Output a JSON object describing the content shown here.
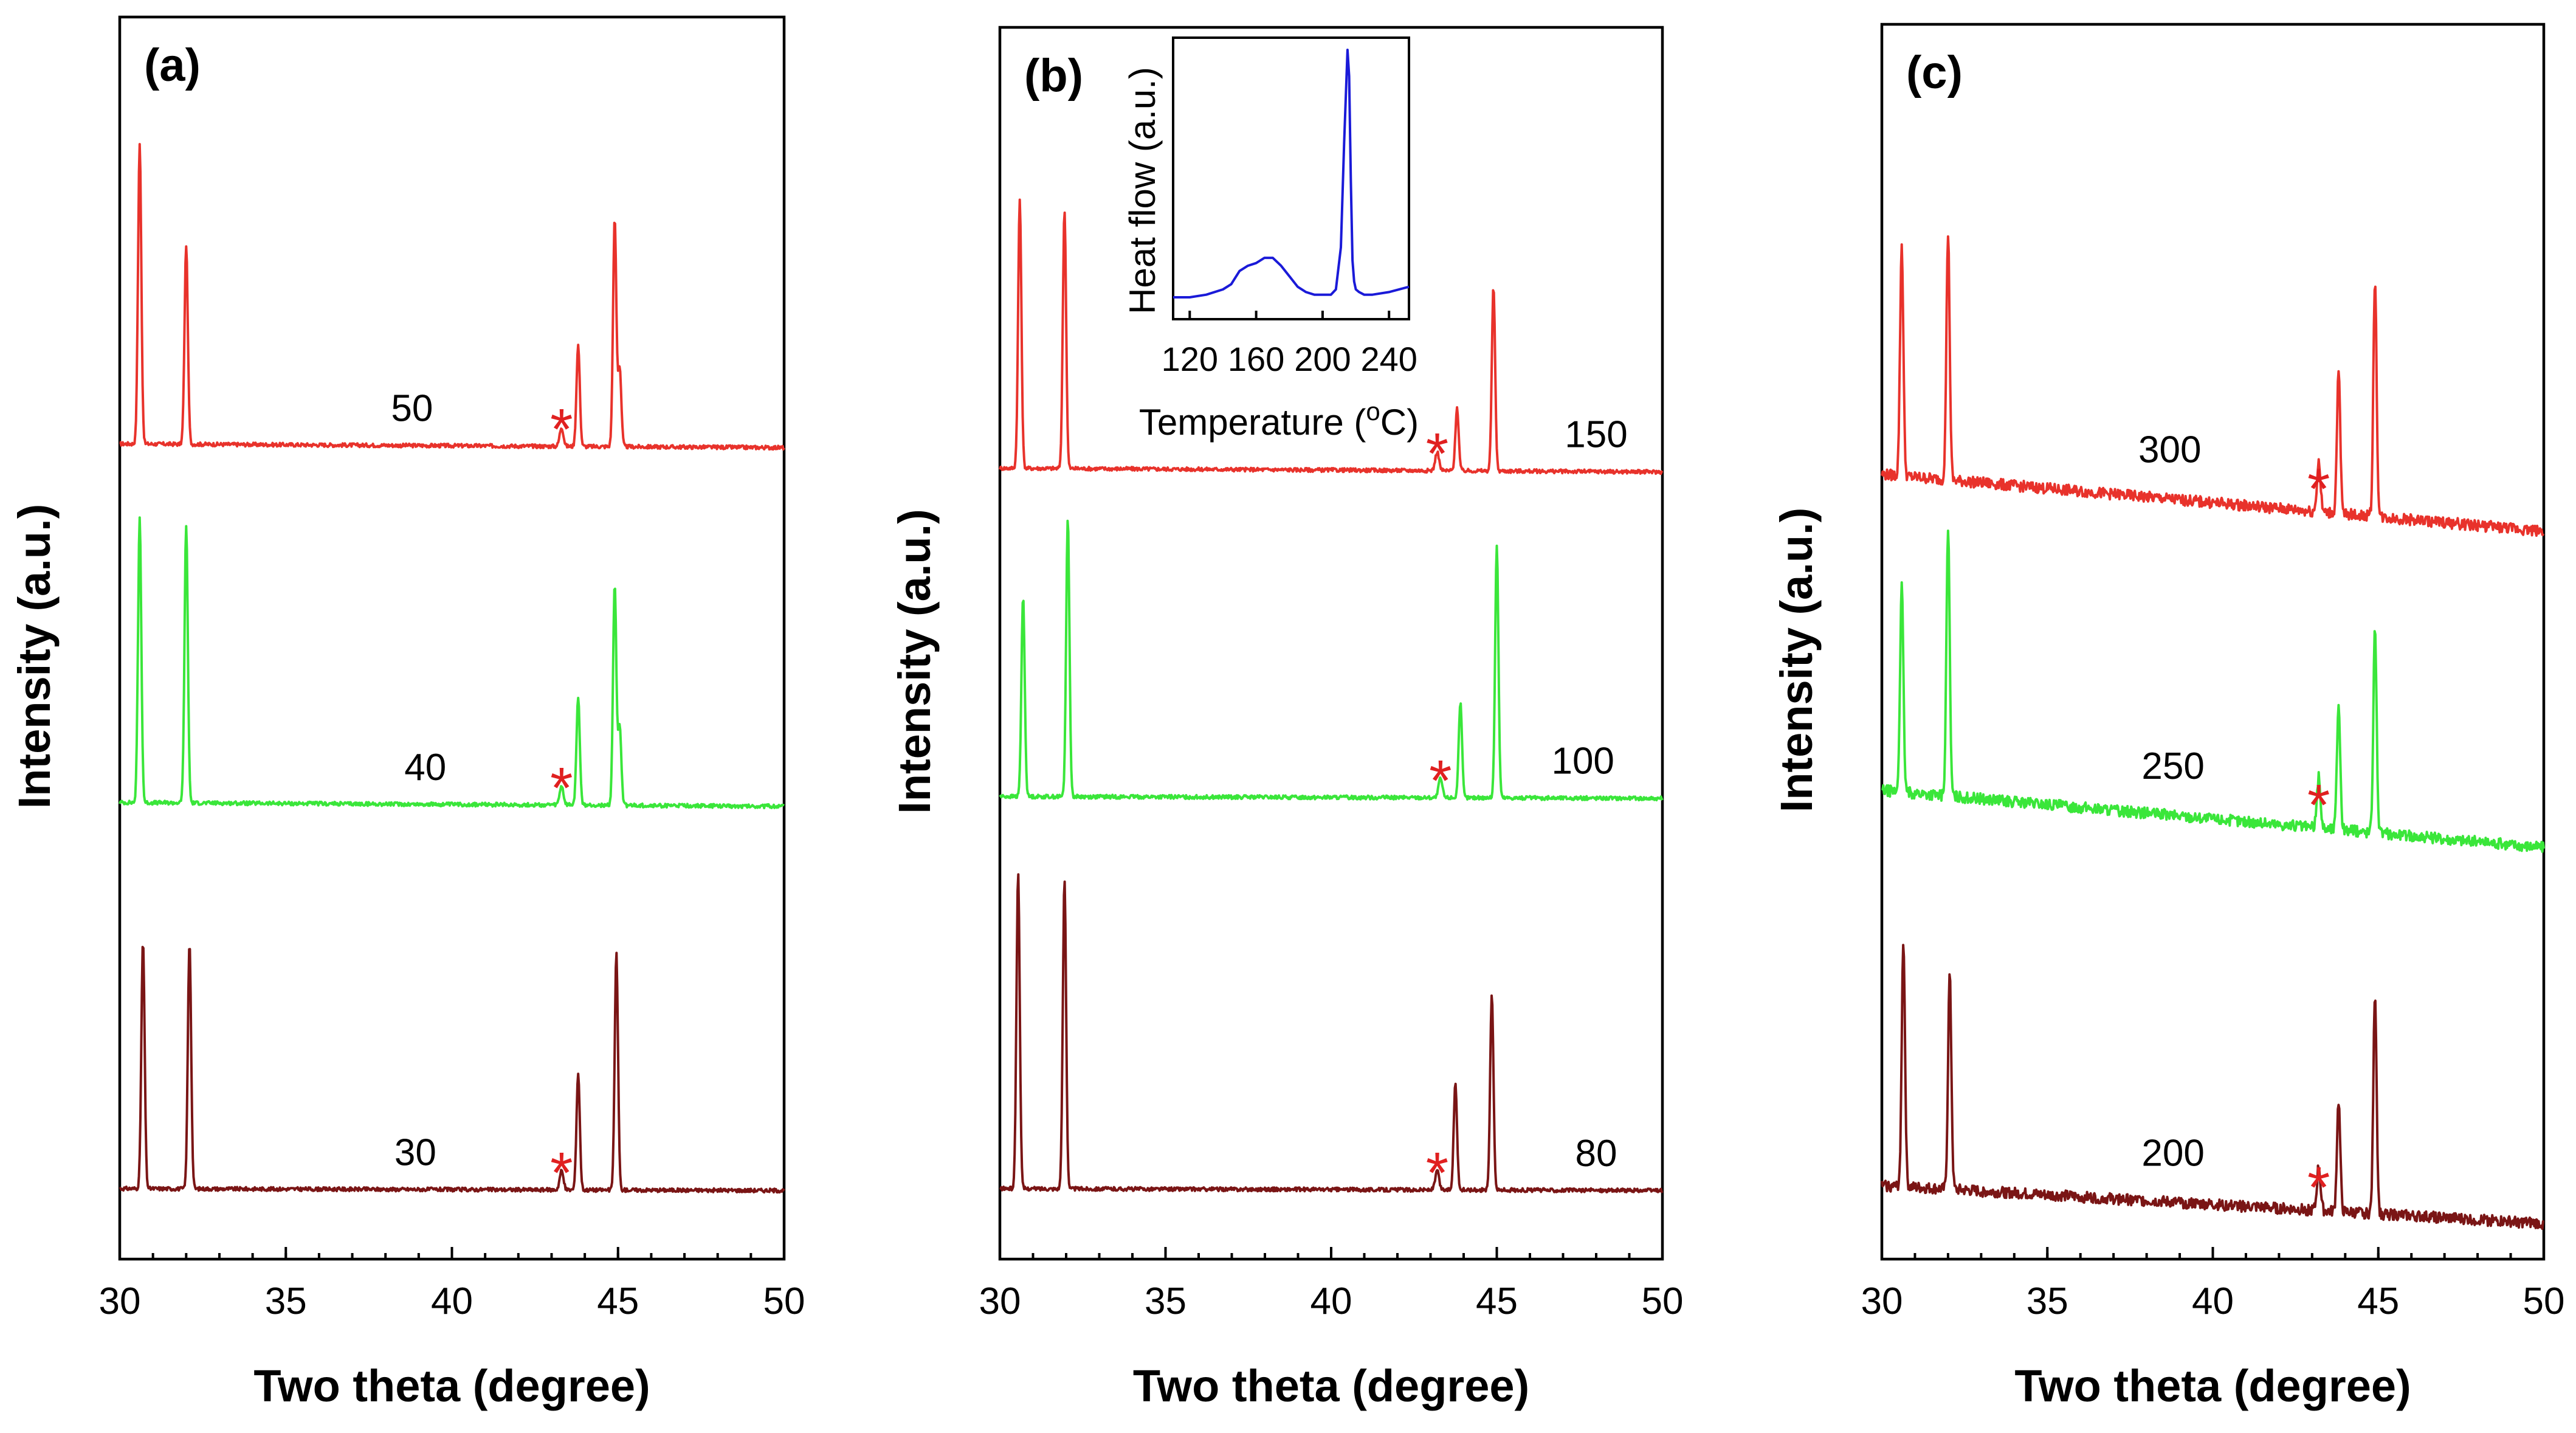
{
  "colors": {
    "red": "#e8322b",
    "green": "#3ae63a",
    "darkred": "#7a1515",
    "star": "#e02020",
    "dsc": "#1a1ad8"
  },
  "chart_data": [
    {
      "type": "line",
      "panel": "(a)",
      "xlabel": "Two theta (degree)",
      "ylabel": "Intensity (a.u.)",
      "xlim": [
        30,
        50
      ],
      "xticks": [
        "30",
        "35",
        "40",
        "45",
        "50"
      ],
      "series": [
        {
          "name": "50",
          "color": "red",
          "label_x": 38.8,
          "offset": 2.0,
          "peaks": [
            [
              30.6,
              0.95
            ],
            [
              32.0,
              0.63
            ],
            [
              43.8,
              0.32
            ],
            [
              44.9,
              0.72
            ],
            [
              45.05,
              0.25
            ]
          ],
          "star_x": 43.3,
          "baseline_slope": -0.02
        },
        {
          "name": "40",
          "color": "green",
          "label_x": 39.2,
          "offset": 1.0,
          "peaks": [
            [
              30.6,
              0.9
            ],
            [
              32.0,
              0.88
            ],
            [
              43.8,
              0.34
            ],
            [
              44.9,
              0.7
            ],
            [
              45.05,
              0.25
            ]
          ],
          "star_x": 43.3,
          "baseline_slope": -0.02
        },
        {
          "name": "30",
          "color": "darkred",
          "label_x": 38.9,
          "offset": 0.0,
          "peaks": [
            [
              30.7,
              0.78
            ],
            [
              32.1,
              0.78
            ],
            [
              43.8,
              0.37
            ],
            [
              44.95,
              0.75
            ]
          ],
          "star_x": 43.3,
          "baseline_slope": -0.01
        }
      ]
    },
    {
      "type": "line",
      "panel": "(b)",
      "xlabel": "Two theta (degree)",
      "ylabel": "Intensity (a.u.)",
      "xlim": [
        30,
        50
      ],
      "xticks": [
        "30",
        "35",
        "40",
        "45",
        "50"
      ],
      "series": [
        {
          "name": "150",
          "color": "red",
          "label_x": 48.0,
          "offset": 2.0,
          "peaks": [
            [
              30.6,
              0.85
            ],
            [
              31.95,
              0.82
            ],
            [
              43.8,
              0.2
            ],
            [
              44.9,
              0.58
            ]
          ],
          "star_x": 43.2,
          "baseline_slope": -0.02
        },
        {
          "name": "100",
          "color": "green",
          "label_x": 47.6,
          "offset": 1.0,
          "peaks": [
            [
              30.7,
              0.63
            ],
            [
              32.05,
              0.88
            ],
            [
              43.9,
              0.3
            ],
            [
              45.0,
              0.8
            ]
          ],
          "star_x": 43.3,
          "baseline_slope": -0.01
        },
        {
          "name": "80",
          "color": "darkred",
          "label_x": 48.0,
          "offset": 0.0,
          "peaks": [
            [
              30.55,
              1.0
            ],
            [
              31.95,
              0.98
            ],
            [
              43.75,
              0.34
            ],
            [
              44.85,
              0.62
            ]
          ],
          "star_x": 43.2,
          "baseline_slope": -0.01
        }
      ],
      "inset": {
        "type": "line",
        "xlabel": "Temperature (°C)",
        "xlabel_main": "Temperature (",
        "xlabel_sup": "o",
        "xlabel_unit": "C)",
        "ylabel": "Heat flow (a.u.)",
        "xlim": [
          110,
          252
        ],
        "xticks": [
          "120",
          "160",
          "200",
          "240"
        ],
        "x": [
          110,
          120,
          130,
          140,
          145,
          150,
          155,
          160,
          165,
          170,
          175,
          180,
          185,
          190,
          195,
          200,
          205,
          208,
          211,
          213,
          215,
          216,
          217,
          218,
          219,
          220,
          222,
          225,
          230,
          240,
          252
        ],
        "y": [
          0.06,
          0.06,
          0.07,
          0.09,
          0.11,
          0.16,
          0.18,
          0.19,
          0.21,
          0.21,
          0.18,
          0.14,
          0.1,
          0.08,
          0.07,
          0.07,
          0.07,
          0.09,
          0.25,
          0.65,
          1.0,
          0.9,
          0.5,
          0.2,
          0.12,
          0.09,
          0.08,
          0.07,
          0.07,
          0.08,
          0.1
        ]
      }
    },
    {
      "type": "line",
      "panel": "(c)",
      "xlabel": "Two theta (degree)",
      "ylabel": "Intensity (a.u.)",
      "xlim": [
        30,
        50
      ],
      "xticks": [
        "30",
        "35",
        "40",
        "45",
        "50"
      ],
      "series": [
        {
          "name": "300",
          "color": "red",
          "label_x": 38.7,
          "offset": 2.0,
          "peaks": [
            [
              30.6,
              0.73
            ],
            [
              32.0,
              0.78
            ],
            [
              43.8,
              0.45
            ],
            [
              44.9,
              0.75
            ],
            [
              43.2,
              0.1
            ]
          ],
          "star_x": 43.2,
          "baseline_slope": -0.3
        },
        {
          "name": "250",
          "color": "green",
          "label_x": 38.8,
          "offset": 1.0,
          "peaks": [
            [
              30.6,
              0.65
            ],
            [
              32.0,
              0.85
            ],
            [
              43.8,
              0.4
            ],
            [
              44.9,
              0.65
            ],
            [
              43.2,
              0.1
            ]
          ],
          "star_x": 43.2,
          "baseline_slope": -0.3
        },
        {
          "name": "200",
          "color": "darkred",
          "label_x": 38.8,
          "offset": 0.0,
          "peaks": [
            [
              30.65,
              0.78
            ],
            [
              32.05,
              0.68
            ],
            [
              43.8,
              0.35
            ],
            [
              44.9,
              0.7
            ],
            [
              43.2,
              0.08
            ]
          ],
          "star_x": 43.2,
          "baseline_slope": -0.2
        }
      ]
    }
  ]
}
